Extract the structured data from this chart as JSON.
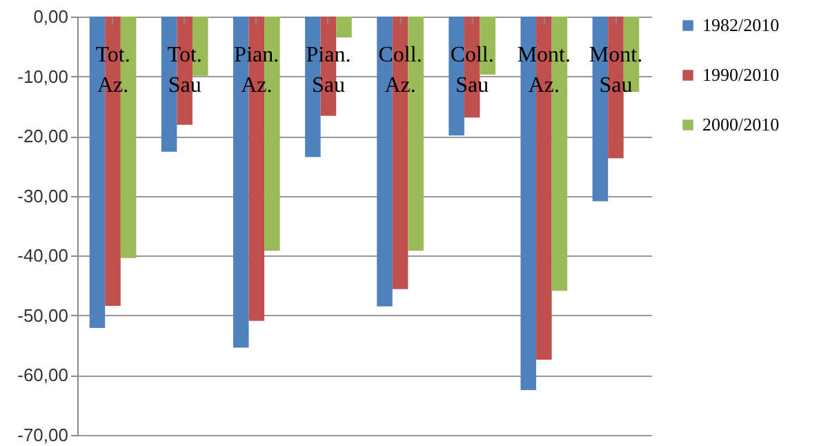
{
  "chart_data": {
    "type": "bar",
    "categories": [
      "Tot. Az.",
      "Tot. Sau",
      "Pian. Az.",
      "Pian. Sau",
      "Coll. Az.",
      "Coll. Sau",
      "Mont. Az.",
      "Mont. Sau"
    ],
    "series": [
      {
        "name": "1982/2010",
        "color": "#4f81bd",
        "values": [
          -52.1,
          -22.6,
          -55.4,
          -23.5,
          -48.5,
          -19.9,
          -62.5,
          -30.9
        ]
      },
      {
        "name": "1990/2010",
        "color": "#c0504d",
        "values": [
          -48.4,
          -18.1,
          -50.9,
          -16.6,
          -45.6,
          -16.9,
          -57.4,
          -23.7
        ]
      },
      {
        "name": "2000/2010",
        "color": "#9bbb59",
        "values": [
          -40.4,
          -9.9,
          -39.2,
          -3.5,
          -39.2,
          -9.7,
          -45.9,
          -12.6
        ]
      }
    ],
    "ylim": [
      -70,
      0
    ],
    "yticks": [
      {
        "value": -70,
        "label": "-70,00"
      },
      {
        "value": -60,
        "label": "-60,00"
      },
      {
        "value": -50,
        "label": "-50,00"
      },
      {
        "value": -40,
        "label": "-40,00"
      },
      {
        "value": -30,
        "label": "-30,00"
      },
      {
        "value": -20,
        "label": "-20,00"
      },
      {
        "value": -10,
        "label": "-10,00"
      },
      {
        "value": 0,
        "label": "0,00"
      }
    ],
    "grid": "y",
    "legend": "right"
  }
}
